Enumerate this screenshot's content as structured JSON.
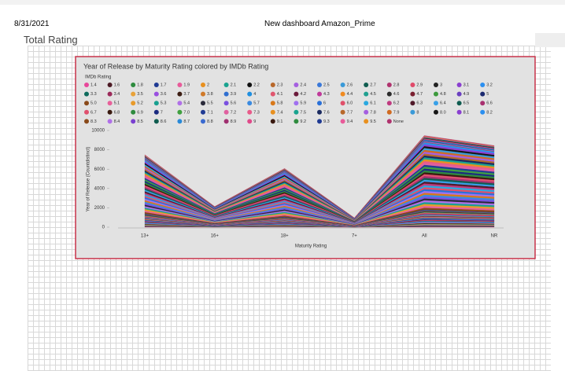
{
  "header": {
    "date": "8/31/2021",
    "title": "New dashboard Amazon_Prime",
    "tab": "Total Rating"
  },
  "chart_data": {
    "type": "stacked-area",
    "title": "Year of Release by Maturity Rating colored by IMDb Rating",
    "legend_title": "IMDb Rating",
    "x_label": "Maturity Rating",
    "y_label": "Year of Release (Countdistinct)",
    "categories": [
      "13+",
      "16+",
      "18+",
      "7+",
      "All",
      "NR"
    ],
    "ylim": [
      0,
      10000
    ],
    "yticks": [
      0,
      2000,
      4000,
      6000,
      8000,
      10000
    ],
    "series": [
      {
        "name": "1.4",
        "color": "#e8479a",
        "values": [
          40,
          10,
          31,
          5,
          49,
          45
        ]
      },
      {
        "name": "1.6",
        "color": "#4c1a24",
        "values": [
          38,
          12,
          29,
          6,
          52,
          42
        ]
      },
      {
        "name": "1.8",
        "color": "#2e8b3e",
        "values": [
          40,
          10,
          31,
          5,
          49,
          45
        ]
      },
      {
        "name": "1.7",
        "color": "#1f3a93",
        "values": [
          38,
          12,
          29,
          6,
          52,
          42
        ]
      },
      {
        "name": "1.9",
        "color": "#e85b9a",
        "values": [
          40,
          10,
          31,
          5,
          49,
          45
        ]
      },
      {
        "name": "2",
        "color": "#e8901f",
        "values": [
          38,
          12,
          29,
          6,
          52,
          42
        ]
      },
      {
        "name": "2.1",
        "color": "#19a38f",
        "values": [
          40,
          10,
          31,
          5,
          49,
          45
        ]
      },
      {
        "name": "2.2",
        "color": "#111111",
        "values": [
          38,
          12,
          29,
          6,
          52,
          42
        ]
      },
      {
        "name": "2.3",
        "color": "#b8682a",
        "values": [
          40,
          10,
          31,
          5,
          49,
          45
        ]
      },
      {
        "name": "2.4",
        "color": "#a55fe0",
        "values": [
          38,
          12,
          29,
          6,
          52,
          42
        ]
      },
      {
        "name": "2.5",
        "color": "#3a78d8",
        "values": [
          40,
          10,
          31,
          5,
          49,
          45
        ]
      },
      {
        "name": "2.6",
        "color": "#3a9ad8",
        "values": [
          38,
          12,
          29,
          6,
          52,
          42
        ]
      },
      {
        "name": "2.7",
        "color": "#0f5c4f",
        "values": [
          40,
          10,
          31,
          5,
          49,
          45
        ]
      },
      {
        "name": "2.8",
        "color": "#b0336e",
        "values": [
          38,
          12,
          29,
          6,
          52,
          42
        ]
      },
      {
        "name": "2.9",
        "color": "#e04a6a",
        "values": [
          40,
          10,
          31,
          5,
          49,
          45
        ]
      },
      {
        "name": "3",
        "color": "#222222",
        "values": [
          38,
          12,
          29,
          6,
          52,
          42
        ]
      },
      {
        "name": "3.1",
        "color": "#8a3fd0",
        "values": [
          40,
          10,
          31,
          5,
          49,
          45
        ]
      },
      {
        "name": "3.2",
        "color": "#2b8ff0",
        "values": [
          38,
          12,
          29,
          6,
          52,
          42
        ]
      },
      {
        "name": "3.3",
        "color": "#0e6b5c",
        "values": [
          40,
          10,
          31,
          5,
          49,
          45
        ]
      },
      {
        "name": "3.4",
        "color": "#9b2a5a",
        "values": [
          38,
          12,
          29,
          6,
          52,
          42
        ]
      },
      {
        "name": "3.5",
        "color": "#e8a23a",
        "values": [
          40,
          10,
          31,
          5,
          49,
          45
        ]
      },
      {
        "name": "3.6",
        "color": "#9a4fe0",
        "values": [
          38,
          12,
          29,
          6,
          52,
          42
        ]
      },
      {
        "name": "3.7",
        "color": "#3b1d12",
        "values": [
          40,
          10,
          31,
          5,
          49,
          45
        ]
      },
      {
        "name": "3.8",
        "color": "#d07a2a",
        "values": [
          38,
          12,
          29,
          6,
          52,
          42
        ]
      },
      {
        "name": "3.9",
        "color": "#2f6fd0",
        "values": [
          40,
          10,
          31,
          5,
          49,
          45
        ]
      },
      {
        "name": "4",
        "color": "#1f8fe0",
        "values": [
          38,
          12,
          29,
          6,
          52,
          42
        ]
      },
      {
        "name": "4.1",
        "color": "#e0566e",
        "values": [
          40,
          10,
          31,
          5,
          49,
          45
        ]
      },
      {
        "name": "4.2",
        "color": "#6a1a3a",
        "values": [
          38,
          12,
          29,
          6,
          52,
          42
        ]
      },
      {
        "name": "4.3",
        "color": "#c0399a",
        "values": [
          40,
          10,
          31,
          5,
          49,
          45
        ]
      },
      {
        "name": "4.4",
        "color": "#f08a20",
        "values": [
          38,
          12,
          29,
          6,
          52,
          42
        ]
      },
      {
        "name": "4.5",
        "color": "#20a090",
        "values": [
          40,
          10,
          31,
          5,
          49,
          45
        ]
      },
      {
        "name": "4.6",
        "color": "#2b2b2b",
        "values": [
          38,
          12,
          29,
          6,
          52,
          42
        ]
      },
      {
        "name": "4.7",
        "color": "#7a2030",
        "values": [
          40,
          10,
          31,
          5,
          49,
          45
        ]
      },
      {
        "name": "4.8",
        "color": "#3c9a3c",
        "values": [
          38,
          12,
          29,
          6,
          52,
          42
        ]
      },
      {
        "name": "4.9",
        "color": "#6a3fc0",
        "values": [
          40,
          10,
          31,
          5,
          49,
          45
        ]
      },
      {
        "name": "5",
        "color": "#1c2a70",
        "values": [
          38,
          12,
          29,
          6,
          52,
          42
        ]
      },
      {
        "name": "5.0",
        "color": "#8a4a1a",
        "values": [
          158,
          42,
          124,
          20,
          196,
          178
        ]
      },
      {
        "name": "5.1",
        "color": "#e8609a",
        "values": [
          150,
          46,
          130,
          18,
          190,
          170
        ]
      },
      {
        "name": "5.2",
        "color": "#e89a2a",
        "values": [
          158,
          42,
          124,
          20,
          196,
          178
        ]
      },
      {
        "name": "5.3",
        "color": "#18a090",
        "values": [
          150,
          46,
          130,
          18,
          190,
          170
        ]
      },
      {
        "name": "5.4",
        "color": "#b070e8",
        "values": [
          158,
          42,
          124,
          20,
          196,
          178
        ]
      },
      {
        "name": "5.5",
        "color": "#2a2a3a",
        "values": [
          150,
          46,
          130,
          18,
          190,
          170
        ]
      },
      {
        "name": "5.6",
        "color": "#7a50e0",
        "values": [
          158,
          42,
          124,
          20,
          196,
          178
        ]
      },
      {
        "name": "5.7",
        "color": "#3a8ae0",
        "values": [
          150,
          46,
          130,
          18,
          190,
          170
        ]
      },
      {
        "name": "5.8",
        "color": "#d8781a",
        "values": [
          158,
          42,
          124,
          20,
          196,
          178
        ]
      },
      {
        "name": "5.9",
        "color": "#a070f0",
        "values": [
          150,
          46,
          130,
          18,
          190,
          170
        ]
      },
      {
        "name": "6",
        "color": "#2a70d8",
        "values": [
          158,
          42,
          124,
          20,
          196,
          178
        ]
      },
      {
        "name": "6.0",
        "color": "#e0506a",
        "values": [
          150,
          46,
          130,
          18,
          190,
          170
        ]
      },
      {
        "name": "6.1",
        "color": "#2aa8e0",
        "values": [
          158,
          42,
          124,
          20,
          196,
          178
        ]
      },
      {
        "name": "6.2",
        "color": "#c03a80",
        "values": [
          150,
          46,
          130,
          18,
          190,
          170
        ]
      },
      {
        "name": "6.3",
        "color": "#501a2a",
        "values": [
          158,
          42,
          124,
          20,
          196,
          178
        ]
      },
      {
        "name": "6.4",
        "color": "#38a0e8",
        "values": [
          150,
          46,
          130,
          18,
          190,
          170
        ]
      },
      {
        "name": "6.5",
        "color": "#0f5c50",
        "values": [
          158,
          42,
          124,
          20,
          196,
          178
        ]
      },
      {
        "name": "6.6",
        "color": "#a83070",
        "values": [
          150,
          46,
          130,
          18,
          190,
          170
        ]
      },
      {
        "name": "6.7",
        "color": "#e0506e",
        "values": [
          158,
          42,
          124,
          20,
          196,
          178
        ]
      },
      {
        "name": "6.8",
        "color": "#3a1a10",
        "values": [
          150,
          46,
          130,
          18,
          190,
          170
        ]
      },
      {
        "name": "6.9",
        "color": "#2e8b3e",
        "values": [
          158,
          42,
          124,
          20,
          196,
          178
        ]
      },
      {
        "name": "7",
        "color": "#1a2a80",
        "values": [
          150,
          46,
          130,
          18,
          190,
          170
        ]
      },
      {
        "name": "7.0",
        "color": "#40a040",
        "values": [
          158,
          42,
          124,
          20,
          196,
          178
        ]
      },
      {
        "name": "7.1",
        "color": "#1f3a93",
        "values": [
          150,
          46,
          130,
          18,
          190,
          170
        ]
      },
      {
        "name": "7.2",
        "color": "#e060a0",
        "values": [
          158,
          42,
          124,
          20,
          196,
          178
        ]
      },
      {
        "name": "7.3",
        "color": "#e85b8a",
        "values": [
          150,
          46,
          130,
          18,
          190,
          170
        ]
      },
      {
        "name": "7.4",
        "color": "#e8901f",
        "values": [
          158,
          42,
          124,
          20,
          196,
          178
        ]
      },
      {
        "name": "7.5",
        "color": "#19a38f",
        "values": [
          150,
          46,
          130,
          18,
          190,
          170
        ]
      },
      {
        "name": "7.6",
        "color": "#1a2a60",
        "values": [
          158,
          42,
          124,
          20,
          196,
          178
        ]
      },
      {
        "name": "7.7",
        "color": "#b8682a",
        "values": [
          150,
          46,
          130,
          18,
          190,
          170
        ]
      },
      {
        "name": "7.8",
        "color": "#a55fe0",
        "values": [
          158,
          42,
          124,
          20,
          196,
          178
        ]
      },
      {
        "name": "7.9",
        "color": "#d06a20",
        "values": [
          150,
          46,
          130,
          18,
          190,
          170
        ]
      },
      {
        "name": "8",
        "color": "#3a9ad8",
        "values": [
          158,
          42,
          124,
          20,
          196,
          178
        ]
      },
      {
        "name": "8.0",
        "color": "#151515",
        "values": [
          150,
          46,
          130,
          18,
          190,
          170
        ]
      },
      {
        "name": "8.1",
        "color": "#8a3fd0",
        "values": [
          158,
          42,
          124,
          20,
          196,
          178
        ]
      },
      {
        "name": "8.2",
        "color": "#2b8ff0",
        "values": [
          150,
          46,
          130,
          18,
          190,
          170
        ]
      },
      {
        "name": "8.3",
        "color": "#8a4a1a",
        "values": [
          40,
          10,
          31,
          5,
          49,
          45
        ]
      },
      {
        "name": "8.4",
        "color": "#b070e8",
        "values": [
          38,
          12,
          29,
          6,
          52,
          42
        ]
      },
      {
        "name": "8.5",
        "color": "#7a40d0",
        "values": [
          40,
          10,
          31,
          5,
          49,
          45
        ]
      },
      {
        "name": "8.6",
        "color": "#0f5c4f",
        "values": [
          38,
          12,
          29,
          6,
          52,
          42
        ]
      },
      {
        "name": "8.7",
        "color": "#2a8ad8",
        "values": [
          40,
          10,
          31,
          5,
          49,
          45
        ]
      },
      {
        "name": "8.8",
        "color": "#3a6ad0",
        "values": [
          38,
          12,
          29,
          6,
          52,
          42
        ]
      },
      {
        "name": "8.9",
        "color": "#a03070",
        "values": [
          40,
          10,
          31,
          5,
          49,
          45
        ]
      },
      {
        "name": "9",
        "color": "#e04a8a",
        "values": [
          38,
          12,
          29,
          6,
          52,
          42
        ]
      },
      {
        "name": "9.1",
        "color": "#3a1a10",
        "values": [
          40,
          10,
          31,
          5,
          49,
          45
        ]
      },
      {
        "name": "9.2",
        "color": "#2e8b3e",
        "values": [
          38,
          12,
          29,
          6,
          52,
          42
        ]
      },
      {
        "name": "9.3",
        "color": "#1f3a93",
        "values": [
          40,
          10,
          31,
          5,
          49,
          45
        ]
      },
      {
        "name": "9.4",
        "color": "#e85b9a",
        "values": [
          38,
          12,
          29,
          6,
          52,
          42
        ]
      },
      {
        "name": "9.5",
        "color": "#e8901f",
        "values": [
          40,
          10,
          31,
          5,
          49,
          45
        ]
      },
      {
        "name": "None",
        "color": "#b0336e",
        "values": [
          38,
          12,
          29,
          6,
          52,
          42
        ]
      }
    ]
  }
}
